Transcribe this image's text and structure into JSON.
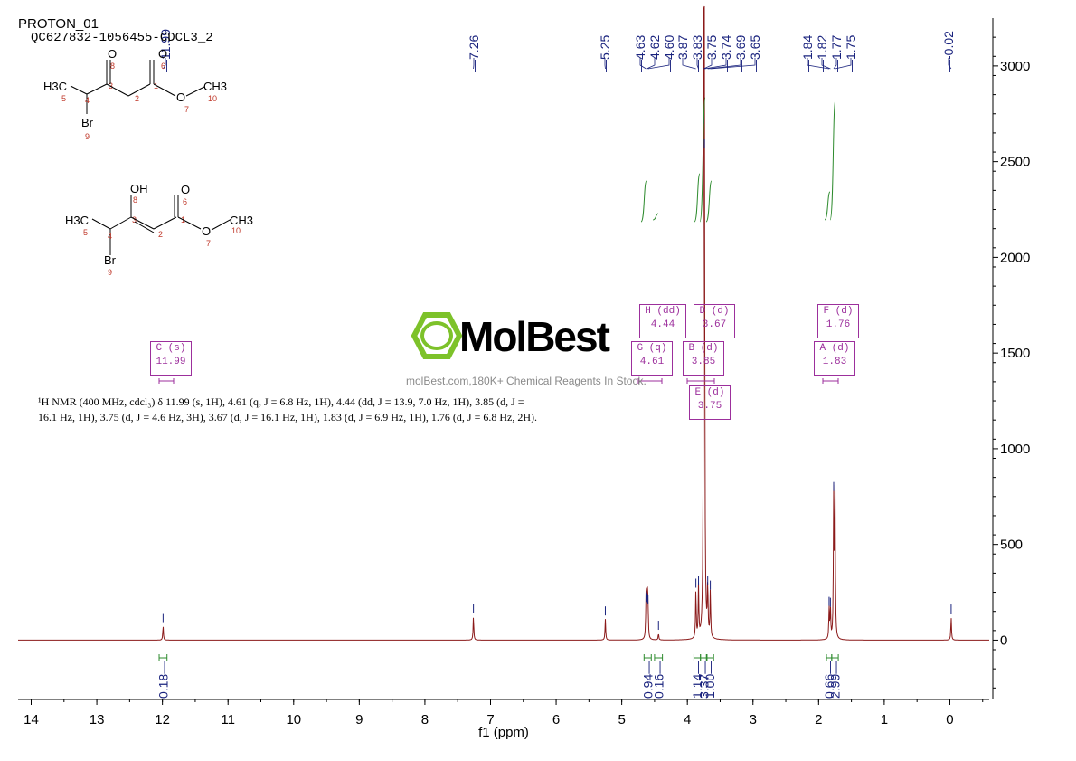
{
  "header": {
    "title": "PROTON_01",
    "subtitle": "QC627832-1056455-CDCL3_2"
  },
  "watermark": {
    "brand": "MolBest",
    "tagline": "molBest.com,180K+ Chemical Reagents In Stock."
  },
  "structures": [
    {
      "atoms": {
        "h3c": "H3C",
        "c5": "5",
        "c4": "4",
        "br": "Br",
        "br9": "9",
        "c3": "3",
        "o8": "O",
        "n8": "8",
        "c2": "2",
        "c1": "1",
        "o6": "O",
        "n6": "6",
        "o7": "O",
        "n7": "7",
        "ch3": "CH3",
        "n10": "10"
      }
    },
    {
      "atoms": {
        "h3c": "H3C",
        "c5": "5",
        "c4": "4",
        "br": "Br",
        "br9": "9",
        "c3": "3",
        "oh": "OH",
        "n8": "8",
        "c2": "2",
        "c1": "1",
        "o6": "O",
        "n6": "6",
        "o7": "O",
        "n7": "7",
        "ch3": "CH3",
        "n10": "10"
      }
    }
  ],
  "nmr_text": "¹H NMR (400 MHz, cdcl₃) δ 11.99 (s, 1H), 4.61 (q, J = 6.8 Hz, 1H), 4.44 (dd, J = 13.9, 7.0 Hz, 1H), 3.85 (d, J = 16.1 Hz, 1H), 3.75 (d, J = 4.6 Hz, 3H), 3.67 (d, J = 16.1 Hz, 1H), 1.83 (d, J = 6.9 Hz, 1H), 1.76 (d, J = 6.8 Hz, 2H).",
  "multiplets": [
    {
      "label": "C (s)",
      "shift": "11.99"
    },
    {
      "label": "H (dd)",
      "shift": "4.44"
    },
    {
      "label": "G (q)",
      "shift": "4.61"
    },
    {
      "label": "D (d)",
      "shift": "3.67"
    },
    {
      "label": "B (d)",
      "shift": "3.85"
    },
    {
      "label": "E (d)",
      "shift": "3.75"
    },
    {
      "label": "F (d)",
      "shift": "1.76"
    },
    {
      "label": "A (d)",
      "shift": "1.83"
    }
  ],
  "chart_data": {
    "type": "line",
    "title": "",
    "xlabel": "f1 (ppm)",
    "ylabel": "",
    "xlim": [
      14.2,
      -0.6
    ],
    "ylim": [
      -310,
      3250
    ],
    "x_ticks": [
      14,
      13,
      12,
      11,
      10,
      9,
      8,
      7,
      6,
      5,
      4,
      3,
      2,
      1,
      0
    ],
    "y_ticks": [
      0,
      500,
      1000,
      1500,
      2000,
      2500,
      3000
    ],
    "peak_labels": [
      "11.99",
      "7.26",
      "5.25",
      "4.63",
      "4.62",
      "4.60",
      "3.87",
      "3.83",
      "3.75",
      "3.74",
      "3.69",
      "3.65",
      "1.84",
      "1.82",
      "1.77",
      "1.75",
      "-0.02"
    ],
    "peaks": [
      {
        "ppm": 11.99,
        "height": 75
      },
      {
        "ppm": 7.26,
        "height": 125
      },
      {
        "ppm": 5.25,
        "height": 110
      },
      {
        "ppm": 4.63,
        "height": 180
      },
      {
        "ppm": 4.62,
        "height": 190
      },
      {
        "ppm": 4.61,
        "height": 175
      },
      {
        "ppm": 4.6,
        "height": 170
      },
      {
        "ppm": 4.44,
        "height": 35
      },
      {
        "ppm": 3.87,
        "height": 255
      },
      {
        "ppm": 3.83,
        "height": 270
      },
      {
        "ppm": 3.75,
        "height": 2680
      },
      {
        "ppm": 3.74,
        "height": 2550
      },
      {
        "ppm": 3.69,
        "height": 270
      },
      {
        "ppm": 3.65,
        "height": 245
      },
      {
        "ppm": 1.84,
        "height": 160
      },
      {
        "ppm": 1.82,
        "height": 155
      },
      {
        "ppm": 1.77,
        "height": 760
      },
      {
        "ppm": 1.75,
        "height": 745
      },
      {
        "ppm": -0.02,
        "height": 120
      }
    ],
    "integrals": [
      {
        "from": 12.05,
        "to": 11.93,
        "value": "0.18"
      },
      {
        "from": 4.66,
        "to": 4.55,
        "value": "0.94"
      },
      {
        "from": 4.5,
        "to": 4.38,
        "value": "0.16"
      },
      {
        "from": 3.9,
        "to": 3.8,
        "value": "1.14"
      },
      {
        "from": 3.8,
        "to": 3.7,
        "value": "3.37"
      },
      {
        "from": 3.71,
        "to": 3.6,
        "value": "1.00"
      },
      {
        "from": 1.88,
        "to": 1.8,
        "value": "0.66"
      },
      {
        "from": 1.8,
        "to": 1.7,
        "value": "2.99"
      }
    ],
    "colors": {
      "spectrum": "#8b1a1a",
      "labels": "#1a237e",
      "integral": "#2e8b2e",
      "box": "#9c2f9c",
      "axis": "#000000"
    }
  }
}
